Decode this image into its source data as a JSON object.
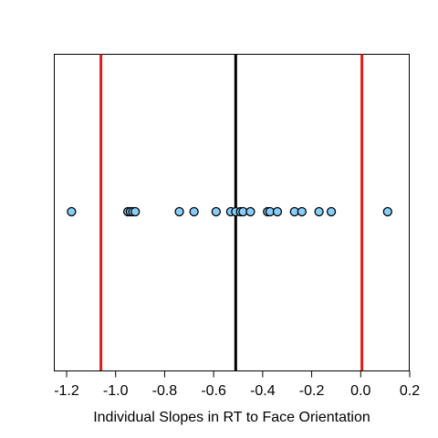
{
  "chart_data": {
    "type": "scatter",
    "title": "",
    "xlabel": "Individual Slopes in RT to Face Orientation",
    "ylabel": "",
    "xlim": [
      -1.22,
      0.2
    ],
    "xticks": [
      -1.2,
      -1.0,
      -0.8,
      -0.6,
      -0.4,
      -0.2,
      0.0,
      0.2
    ],
    "xtick_labels": [
      "-1.2",
      "-1.0",
      "-0.8",
      "-0.6",
      "-0.4",
      "-0.2",
      "0.0",
      "0.2"
    ],
    "grid": false,
    "legend": "none",
    "points": [
      -1.18,
      -0.95,
      -0.94,
      -0.93,
      -0.92,
      -0.74,
      -0.68,
      -0.59,
      -0.53,
      -0.51,
      -0.49,
      -0.48,
      -0.45,
      -0.38,
      -0.37,
      -0.34,
      -0.27,
      -0.24,
      -0.17,
      -0.12,
      0.11
    ],
    "reference_lines": [
      {
        "name": "mean",
        "value": -0.51,
        "color": "#000000"
      },
      {
        "name": "lower-limit",
        "value": -1.06,
        "color": "#e41a1c"
      },
      {
        "name": "upper-limit",
        "value": 0.005,
        "color": "#e41a1c"
      }
    ],
    "point_fill": "#87cefa",
    "point_stroke": "#000000"
  }
}
